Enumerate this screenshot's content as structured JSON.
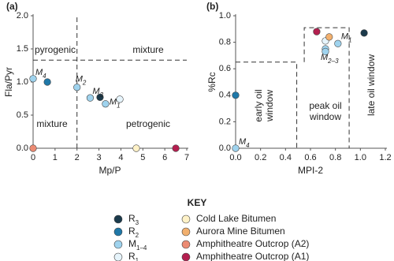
{
  "chart_data": [
    {
      "type": "scatter",
      "panel_label": "(a)",
      "x_label": "Mp/P",
      "y_label": "Fla/Pyr",
      "xlim": [
        0,
        7
      ],
      "xticks": [
        0,
        1,
        2,
        3,
        4,
        5,
        6,
        7
      ],
      "ylim": [
        0,
        2
      ],
      "yticks": [
        {
          "value": 0,
          "label": "0.0"
        },
        {
          "value": 0.5,
          "label": "0.5"
        },
        {
          "value": 1,
          "label": "1.0"
        },
        {
          "value": 1.5,
          "label": "1.5"
        },
        {
          "value": 2,
          "label": "2.0"
        }
      ],
      "lines": [
        {
          "x": [
            2,
            2
          ],
          "y": [
            0,
            2
          ]
        },
        {
          "x": [
            0,
            7
          ],
          "y": [
            1.33,
            1.33
          ]
        }
      ],
      "region_labels": [
        {
          "lines": [
            "pyrogenic"
          ]
        },
        {
          "lines": [
            "mixture"
          ]
        },
        {
          "lines": [
            "mixture"
          ]
        },
        {
          "lines": [
            "petrogenic"
          ]
        }
      ],
      "series": [
        {
          "color": "#1b3a4b",
          "x": [
            3.05
          ],
          "values": [
            0.77
          ]
        },
        {
          "color": "#1f78a8",
          "x": [
            0.65
          ],
          "values": [
            1.0
          ]
        },
        {
          "color": "#9fd3ee",
          "x": [
            0,
            2.0,
            2.6,
            3.3
          ],
          "values": [
            1.05,
            0.92,
            0.76,
            0.67
          ],
          "point_labels": [
            {
              "text": "M",
              "sub": "4"
            },
            {
              "text": "M",
              "sub": "2"
            },
            {
              "text": "M",
              "sub": "3"
            },
            {
              "text": "M",
              "sub": "1"
            }
          ]
        },
        {
          "color": "#e6f4fb",
          "x": [
            3.95
          ],
          "values": [
            0.74
          ]
        },
        {
          "color": "#fff2c7",
          "x": [
            4.7
          ],
          "values": [
            0
          ]
        },
        {
          "color": "#ec8b73",
          "x": [
            0
          ],
          "values": [
            0
          ]
        },
        {
          "color": "#b41f4f",
          "x": [
            6.5
          ],
          "values": [
            0
          ]
        }
      ]
    },
    {
      "type": "scatter",
      "panel_label": "(b)",
      "x_label": "MPI-2",
      "y_label": "%Rc",
      "xlim": [
        0,
        1.2
      ],
      "xticks": [
        {
          "value": 0,
          "label": "0.0"
        },
        {
          "value": 0.2,
          "label": "0.2"
        },
        {
          "value": 0.4,
          "label": "0.4"
        },
        {
          "value": 0.6,
          "label": "0.6"
        },
        {
          "value": 0.8,
          "label": "0.8"
        },
        {
          "value": 1,
          "label": "1.0"
        },
        {
          "value": 1.2,
          "label": "1.2"
        }
      ],
      "ylim": [
        0,
        1
      ],
      "yticks": [
        {
          "value": 0,
          "label": "0.0"
        },
        {
          "value": 0.2,
          "label": "0.2"
        },
        {
          "value": 0.4,
          "label": "0.4"
        },
        {
          "value": 0.6,
          "label": "0.6"
        },
        {
          "value": 0.8,
          "label": "0.8"
        },
        {
          "value": 1,
          "label": "1.0"
        }
      ],
      "lines": [
        {
          "x": [
            0,
            0.49,
            0.49
          ],
          "y": [
            0.65,
            0.65,
            0
          ]
        },
        {
          "x": [
            0.55,
            0.55,
            0.91,
            0.91
          ],
          "y": [
            0.65,
            0.91,
            0.91,
            0
          ]
        }
      ],
      "region_labels": [
        {
          "lines": [
            "early oil",
            "window"
          ]
        },
        {
          "lines": [
            "peak oil",
            "window"
          ]
        },
        {
          "lines": [
            "late oil window"
          ]
        }
      ],
      "series": [
        {
          "color": "#1b3a4b",
          "x": [
            1.03
          ],
          "values": [
            0.87
          ]
        },
        {
          "color": "#1f78a8",
          "x": [
            0
          ],
          "values": [
            0.4
          ]
        },
        {
          "color": "#9fd3ee",
          "x": [
            0,
            0.82,
            0.72,
            0.72
          ],
          "values": [
            0,
            0.79,
            0.75,
            0.73
          ],
          "point_labels": [
            {
              "text": "M",
              "sub": "4"
            },
            {
              "text": "M",
              "sub": "1"
            },
            {
              "text": "M",
              "sub": "2–3"
            },
            null
          ]
        },
        {
          "color": "#e6f4fb",
          "x": [
            0.72
          ],
          "values": [
            0.81
          ]
        },
        {
          "color": "#f2b06e",
          "x": [
            0.75
          ],
          "values": [
            0.84
          ]
        },
        {
          "color": "#b41f4f",
          "x": [
            0.65
          ],
          "values": [
            0.88
          ]
        }
      ]
    }
  ],
  "legend": {
    "title": "KEY",
    "items": [
      {
        "text": "R",
        "sub": "3",
        "color": "#1b3a4b"
      },
      {
        "text": "R",
        "sub": "2",
        "color": "#1f78a8"
      },
      {
        "text": "M",
        "sub": "1–4",
        "color": "#9fd3ee"
      },
      {
        "text": "R",
        "sub": "1",
        "color": "#e6f4fb"
      },
      {
        "text": "Cold Lake Bitumen",
        "color": "#fff2c7"
      },
      {
        "text": "Aurora Mine Bitumen",
        "color": "#f2b06e"
      },
      {
        "text": "Amphitheatre Outcrop (A2)",
        "color": "#ec8b73"
      },
      {
        "text": "Amphitheatre Outcrop (A1)",
        "color": "#b41f4f"
      }
    ]
  }
}
